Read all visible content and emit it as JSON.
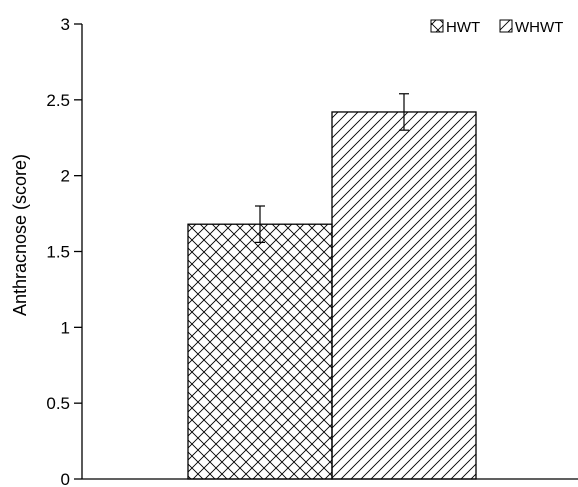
{
  "chart_data": {
    "type": "bar",
    "title": "",
    "xlabel": "",
    "ylabel": "Anthracnose (score)",
    "ylim": [
      0,
      3
    ],
    "yticks": [
      "0",
      "0.5",
      "1",
      "1.5",
      "2",
      "2.5",
      "3"
    ],
    "grid": false,
    "legend_position": "top-right",
    "series": [
      {
        "name": "HWT",
        "value": 1.68,
        "error": 0.12,
        "pattern": "crosshatch",
        "color": "#000000"
      },
      {
        "name": "WHWT",
        "value": 2.42,
        "error": 0.12,
        "pattern": "diagonal",
        "color": "#000000"
      }
    ]
  }
}
